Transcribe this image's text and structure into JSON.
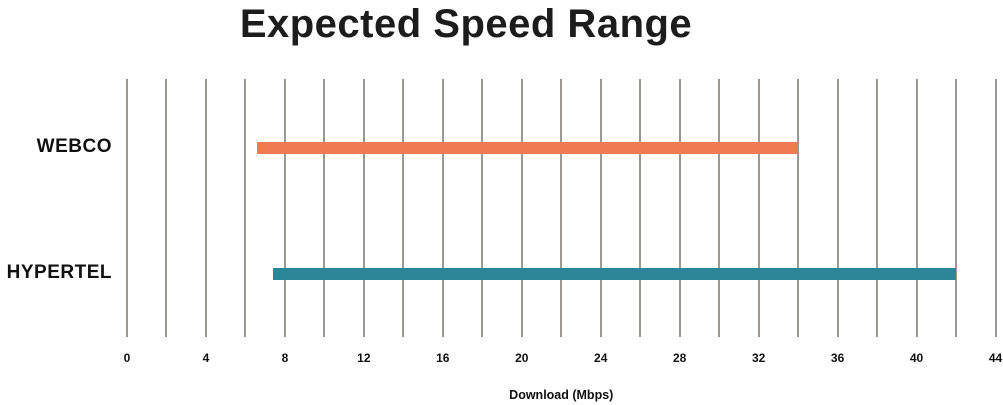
{
  "chart_data": {
    "type": "bar",
    "variant": "horizontal-range-bar",
    "title": "Expected Speed Range",
    "xlabel": "Download (Mbps)",
    "categories": [
      "WEBCO",
      "HYPERTEL"
    ],
    "series": [
      {
        "name": "WEBCO",
        "range": [
          6.6,
          34
        ],
        "color": "#ef7b52"
      },
      {
        "name": "HYPERTEL",
        "range": [
          7.4,
          42
        ],
        "color": "#2b8798"
      }
    ],
    "xlim": [
      0,
      44
    ],
    "grid_step": 2,
    "tick_values": [
      0,
      4,
      8,
      12,
      16,
      20,
      24,
      28,
      32,
      36,
      40,
      44
    ],
    "tick_labels": [
      "0",
      "4",
      "8",
      "12",
      "16",
      "20",
      "24",
      "28",
      "32",
      "36",
      "40",
      "44"
    ],
    "grid": true,
    "legend_position": "none"
  },
  "colors": {
    "background": "#ffffff",
    "gridline": "#9c9891",
    "text": "#111111",
    "title_text": "#1c1c1c"
  }
}
